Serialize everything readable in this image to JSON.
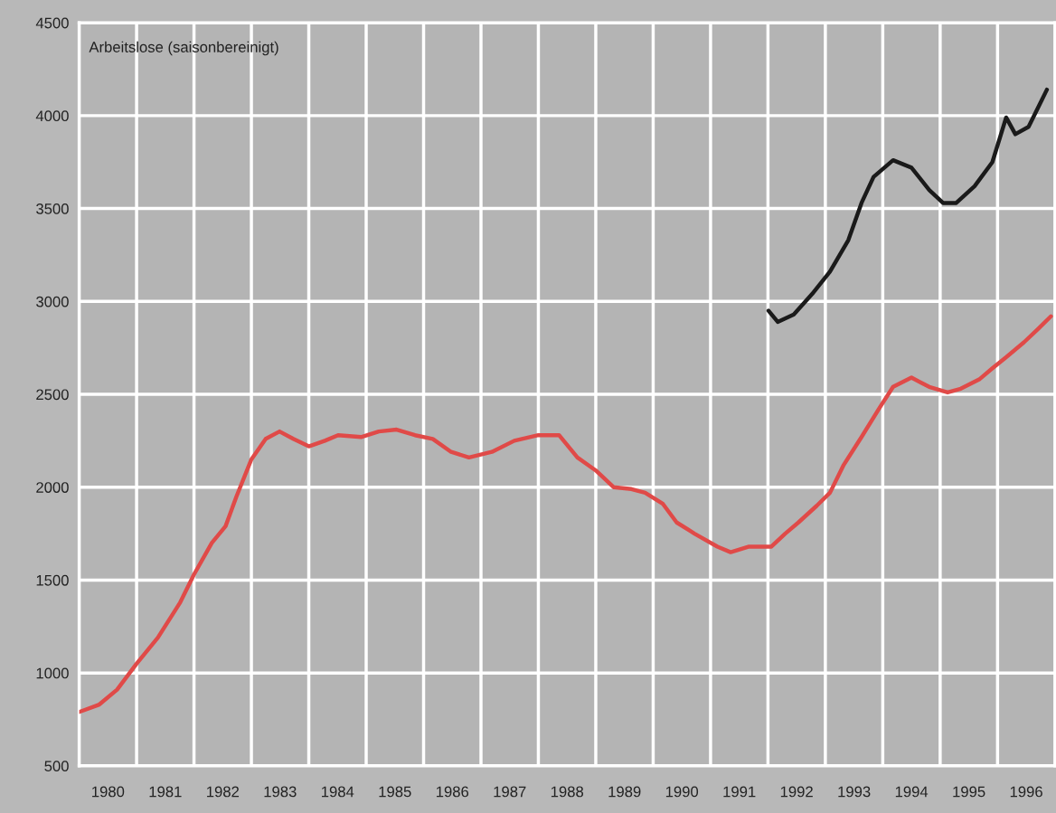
{
  "chart_data": {
    "type": "line",
    "title": "Arbeitslose (saisonbereinigt)",
    "xlim": [
      1980,
      1997
    ],
    "ylim": [
      500,
      4500
    ],
    "xticks": [
      {
        "value": 1981,
        "label": null
      },
      {
        "value": 1982,
        "label": null
      },
      {
        "value": 1983,
        "label": null
      },
      {
        "value": 1984,
        "label": null
      },
      {
        "value": 1985,
        "label": null
      },
      {
        "value": 1986,
        "label": null
      },
      {
        "value": 1987,
        "label": null
      },
      {
        "value": 1988,
        "label": null
      },
      {
        "value": 1989,
        "label": null
      },
      {
        "value": 1990,
        "label": null
      },
      {
        "value": 1991,
        "label": null
      },
      {
        "value": 1992,
        "label": null
      },
      {
        "value": 1993,
        "label": null
      },
      {
        "value": 1994,
        "label": null
      },
      {
        "value": 1995,
        "label": null
      },
      {
        "value": 1996,
        "label": null
      },
      {
        "value": 1980.5,
        "label": "1980"
      },
      {
        "value": 1981.5,
        "label": "1981"
      },
      {
        "value": 1982.5,
        "label": "1982"
      },
      {
        "value": 1983.5,
        "label": "1983"
      },
      {
        "value": 1984.5,
        "label": "1984"
      },
      {
        "value": 1985.5,
        "label": "1985"
      },
      {
        "value": 1986.5,
        "label": "1986"
      },
      {
        "value": 1987.5,
        "label": "1987"
      },
      {
        "value": 1988.5,
        "label": "1988"
      },
      {
        "value": 1989.5,
        "label": "1989"
      },
      {
        "value": 1990.5,
        "label": "1990"
      },
      {
        "value": 1991.5,
        "label": "1991"
      },
      {
        "value": 1992.5,
        "label": "1992"
      },
      {
        "value": 1993.5,
        "label": "1993"
      },
      {
        "value": 1994.5,
        "label": "1994"
      },
      {
        "value": 1995.5,
        "label": "1995"
      },
      {
        "value": 1996.5,
        "label": "1996"
      }
    ],
    "yticks": [
      500,
      1000,
      1500,
      2000,
      2500,
      3000,
      3500,
      4000,
      4500
    ],
    "grid": true,
    "line_style": "solid",
    "series": [
      {
        "color": "#e04a48",
        "x": [
          1980.0,
          1980.35,
          1980.66,
          1981.0,
          1981.37,
          1981.76,
          1982.0,
          1982.31,
          1982.55,
          1982.74,
          1983.0,
          1983.25,
          1983.49,
          1983.73,
          1984.0,
          1984.28,
          1984.51,
          1984.91,
          1985.22,
          1985.53,
          1985.85,
          1986.16,
          1986.48,
          1986.79,
          1987.19,
          1987.58,
          1988.0,
          1988.36,
          1988.68,
          1989.0,
          1989.31,
          1989.62,
          1989.86,
          1990.17,
          1990.41,
          1990.72,
          1991.12,
          1991.35,
          1991.67,
          1992.06,
          1992.3,
          1992.53,
          1992.85,
          1993.08,
          1993.32,
          1993.63,
          1993.95,
          1994.18,
          1994.5,
          1994.81,
          1995.13,
          1995.36,
          1995.68,
          1995.91,
          1996.15,
          1996.46,
          1996.7,
          1996.93
        ],
        "values": [
          790,
          830,
          910,
          1050,
          1190,
          1380,
          1530,
          1700,
          1790,
          1950,
          2150,
          2260,
          2300,
          2260,
          2220,
          2250,
          2280,
          2270,
          2300,
          2310,
          2280,
          2260,
          2190,
          2160,
          2190,
          2250,
          2280,
          2280,
          2160,
          2090,
          2000,
          1990,
          1970,
          1910,
          1810,
          1750,
          1680,
          1650,
          1680,
          1680,
          1750,
          1810,
          1900,
          1970,
          2120,
          2270,
          2430,
          2540,
          2590,
          2540,
          2510,
          2530,
          2580,
          2640,
          2700,
          2780,
          2850,
          2920
        ]
      },
      {
        "color": "#1a1a1a",
        "x": [
          1992.01,
          1992.17,
          1992.45,
          1992.77,
          1993.08,
          1993.4,
          1993.63,
          1993.84,
          1994.18,
          1994.5,
          1994.81,
          1995.05,
          1995.28,
          1995.6,
          1995.91,
          1996.15,
          1996.31,
          1996.54,
          1996.7,
          1996.86
        ],
        "values": [
          2950,
          2890,
          2930,
          3040,
          3160,
          3330,
          3530,
          3670,
          3760,
          3720,
          3600,
          3530,
          3530,
          3620,
          3750,
          3990,
          3900,
          3940,
          4040,
          4140
        ]
      }
    ]
  }
}
